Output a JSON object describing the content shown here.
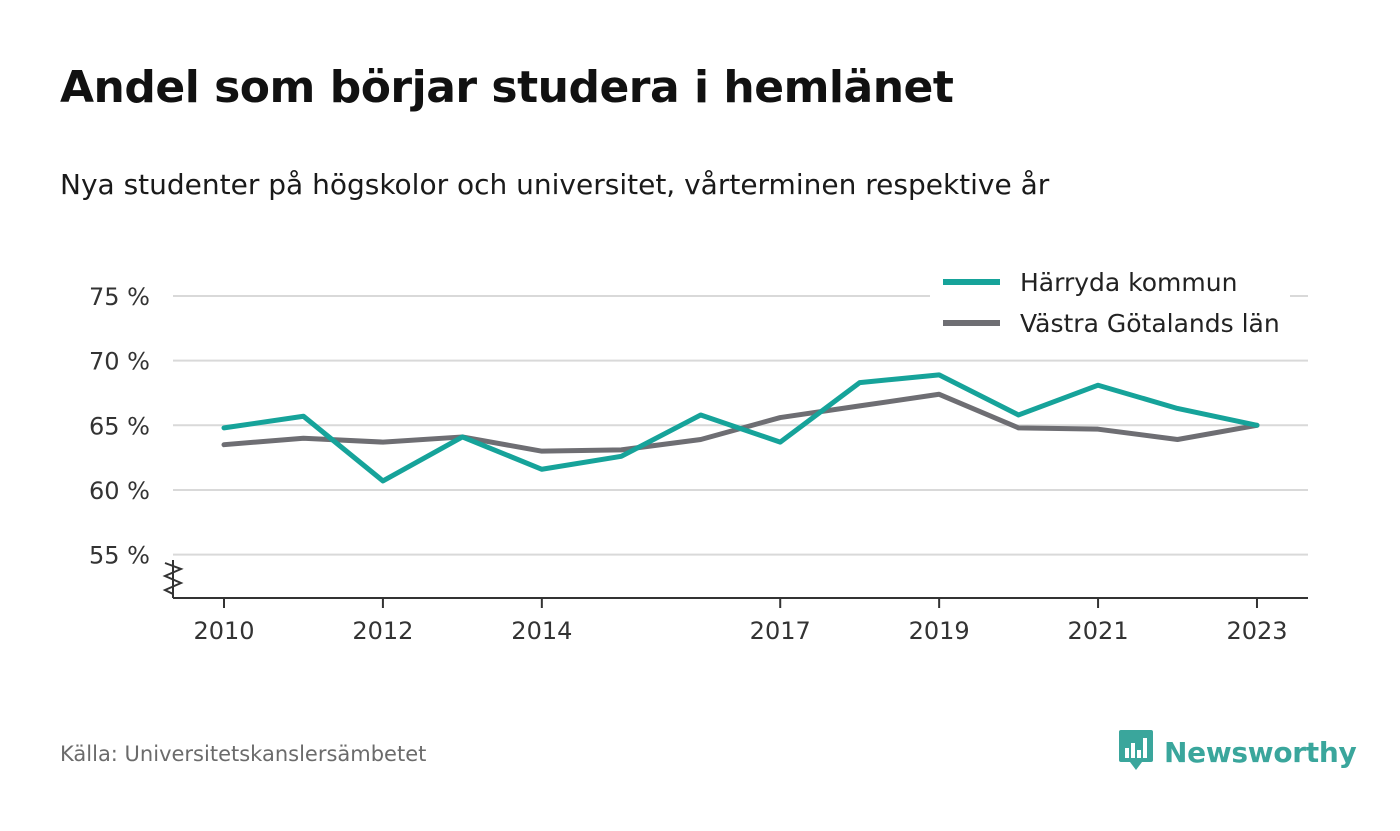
{
  "header": {
    "title": "Andel som börjar studera i hemlänet",
    "subtitle": "Nya studenter på högskolor och universitet, vårterminen respektive år"
  },
  "footer": {
    "source": "Källa: Universitetskanslersämbetet",
    "brand": "Newsworthy",
    "brand_icon": "bar-chart-speech-bubble-icon",
    "brand_color": "#3aa69c"
  },
  "chart_data": {
    "type": "line",
    "x": [
      2010,
      2011,
      2012,
      2013,
      2014,
      2015,
      2016,
      2017,
      2018,
      2019,
      2020,
      2021,
      2022,
      2023
    ],
    "x_tick_labels": [
      "2010",
      "2012",
      "2014",
      "2017",
      "2019",
      "2021",
      "2023"
    ],
    "y_tick_labels": [
      "75 %",
      "70 %",
      "65 %",
      "60 %",
      "55 %"
    ],
    "y_ticks": [
      75,
      70,
      65,
      60,
      55
    ],
    "ylim": [
      51.5,
      77
    ],
    "xlim": [
      2009.35,
      2023.65
    ],
    "grid": true,
    "legend_position": "top-right",
    "axis_break": true,
    "series": [
      {
        "name": "Härryda kommun",
        "color": "#16a39a",
        "values": [
          64.8,
          65.7,
          60.7,
          64.1,
          61.6,
          62.6,
          65.8,
          63.7,
          68.3,
          68.9,
          65.8,
          68.1,
          66.3,
          65.0
        ]
      },
      {
        "name": "Västra Götalands län",
        "color": "#6e6e73",
        "values": [
          63.5,
          64.0,
          63.7,
          64.1,
          63.0,
          63.1,
          63.9,
          65.6,
          66.5,
          67.4,
          64.8,
          64.7,
          63.9,
          65.0
        ]
      }
    ]
  }
}
